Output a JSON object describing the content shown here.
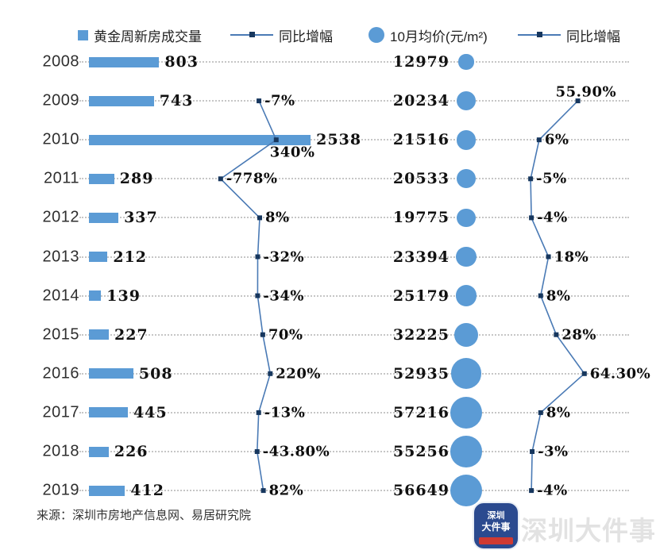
{
  "legend": {
    "items": [
      {
        "icon": "bar-swatch",
        "label": "黄金周新房成交量"
      },
      {
        "icon": "line-marker",
        "label": "同比增幅"
      },
      {
        "icon": "bubble",
        "label": "10月均价(元/m²)"
      },
      {
        "icon": "line-marker",
        "label": "同比增幅"
      }
    ]
  },
  "source": "来源：深圳市房地产信息网、易居研究院",
  "watermark": "深圳大件事",
  "logo": {
    "line1": "深圳",
    "line2": "大件事"
  },
  "colors": {
    "bar": "#5b9bd5",
    "bubble": "#5b9bd5",
    "line": "#4a7ab5",
    "marker": "#17375e",
    "grid": "#c6c6c6",
    "text": "#111111"
  },
  "chart_data": {
    "type": "combo (horizontal bars + bubbles + two vertical line series)",
    "categories": [
      "2008",
      "2009",
      "2010",
      "2011",
      "2012",
      "2013",
      "2014",
      "2015",
      "2016",
      "2017",
      "2018",
      "2019"
    ],
    "series": [
      {
        "name": "黄金周新房成交量",
        "type": "bar",
        "values": [
          803,
          743,
          2538,
          289,
          337,
          212,
          139,
          227,
          508,
          445,
          226,
          412
        ],
        "labels": [
          "803",
          "743",
          "2538",
          "289",
          "337",
          "212",
          "139",
          "227",
          "508",
          "445",
          "226",
          "412"
        ]
      },
      {
        "name": "同比增幅(成交量)",
        "type": "line",
        "values": [
          null,
          -7,
          340,
          -778,
          8,
          -32,
          -34,
          70,
          220,
          -13,
          -43.8,
          82
        ],
        "labels": [
          null,
          "-7%",
          "340%",
          "-778%",
          "8%",
          "-32%",
          "-34%",
          "70%",
          "220%",
          "-13%",
          "-43.80%",
          "82%"
        ]
      },
      {
        "name": "10月均价(元/m²)",
        "type": "bubble",
        "values": [
          12979,
          20234,
          21516,
          20533,
          19775,
          23394,
          25179,
          32225,
          52935,
          57216,
          55256,
          56649
        ],
        "labels": [
          "12979",
          "20234",
          "21516",
          "20533",
          "19775",
          "23394",
          "25179",
          "32225",
          "52935",
          "57216",
          "55256",
          "56649"
        ]
      },
      {
        "name": "同比增幅(均价)",
        "type": "line",
        "values": [
          null,
          55.9,
          6,
          -5,
          -4,
          18,
          8,
          28,
          64.3,
          8,
          -3,
          -4
        ],
        "labels": [
          null,
          "55.90%",
          "6%",
          "-5%",
          "-4%",
          "18%",
          "8%",
          "28%",
          "64.30%",
          "8%",
          "-3%",
          "-4%"
        ]
      }
    ],
    "grid": "horizontal dotted guide per year",
    "legend_position": "top"
  }
}
